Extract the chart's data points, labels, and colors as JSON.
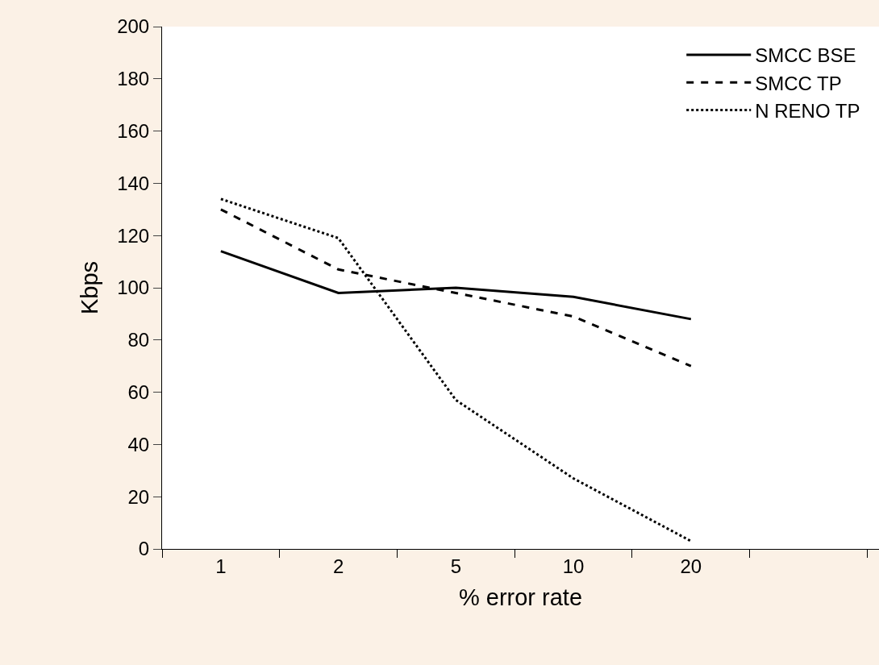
{
  "chart_data": {
    "type": "line",
    "xlabel": "% error rate",
    "ylabel": "Kbps",
    "categories": [
      "1",
      "2",
      "5",
      "10",
      "20",
      null
    ],
    "series": [
      {
        "name": "SMCC BSE",
        "color": "#000000",
        "line_style": "solid",
        "values": [
          114,
          98,
          100,
          96.5,
          88,
          null
        ]
      },
      {
        "name": "SMCC TP",
        "color": "#000000",
        "line_style": "dashed",
        "values": [
          130,
          107,
          98,
          89,
          70,
          null
        ]
      },
      {
        "name": "N RENO TP",
        "color": "#000000",
        "line_style": "dotted",
        "values": [
          134,
          119,
          57,
          27,
          3,
          null
        ]
      }
    ],
    "ylim": [
      0,
      200
    ],
    "yticks": [
      0,
      20,
      40,
      60,
      80,
      100,
      120,
      140,
      160,
      180,
      200
    ],
    "legend": "top right",
    "marker": "none"
  }
}
